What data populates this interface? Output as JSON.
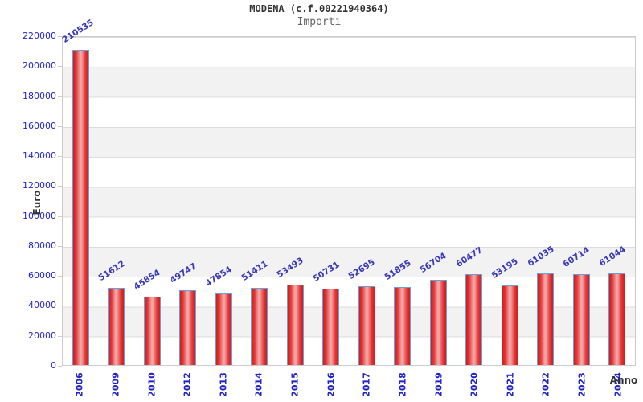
{
  "header": {
    "title": "MODENA (c.f.00221940364)",
    "subtitle": "Importi"
  },
  "chart_data": {
    "type": "bar",
    "title": "MODENA (c.f.00221940364)",
    "subtitle": "Importi",
    "xlabel": "Anno",
    "ylabel": "Euro",
    "categories": [
      "2006",
      "2009",
      "2010",
      "2012",
      "2013",
      "2014",
      "2015",
      "2016",
      "2017",
      "2018",
      "2019",
      "2020",
      "2021",
      "2022",
      "2023",
      "2024"
    ],
    "values": [
      210535,
      51612,
      45854,
      49747,
      47854,
      51411,
      53493,
      50731,
      52695,
      51855,
      56704,
      60477,
      53195,
      61035,
      60714,
      61044
    ],
    "ylim": [
      0,
      220000
    ],
    "yticks": [
      0,
      20000,
      40000,
      60000,
      80000,
      100000,
      120000,
      140000,
      160000,
      180000,
      200000,
      220000
    ],
    "grid": true,
    "legend": false,
    "colors": {
      "bar_edge": "#c82020",
      "bar_bright": "#e83535",
      "bar_mid": "#f0a6a6",
      "bar_border": "#68a0d6",
      "value_label": "#3838b8",
      "tick_label": "#2222cc",
      "band": "#f2f2f2",
      "grid_line": "#dcdcdc",
      "plot_border": "#cccccc",
      "title_text": "#333333",
      "subtitle_text": "#666666"
    }
  }
}
